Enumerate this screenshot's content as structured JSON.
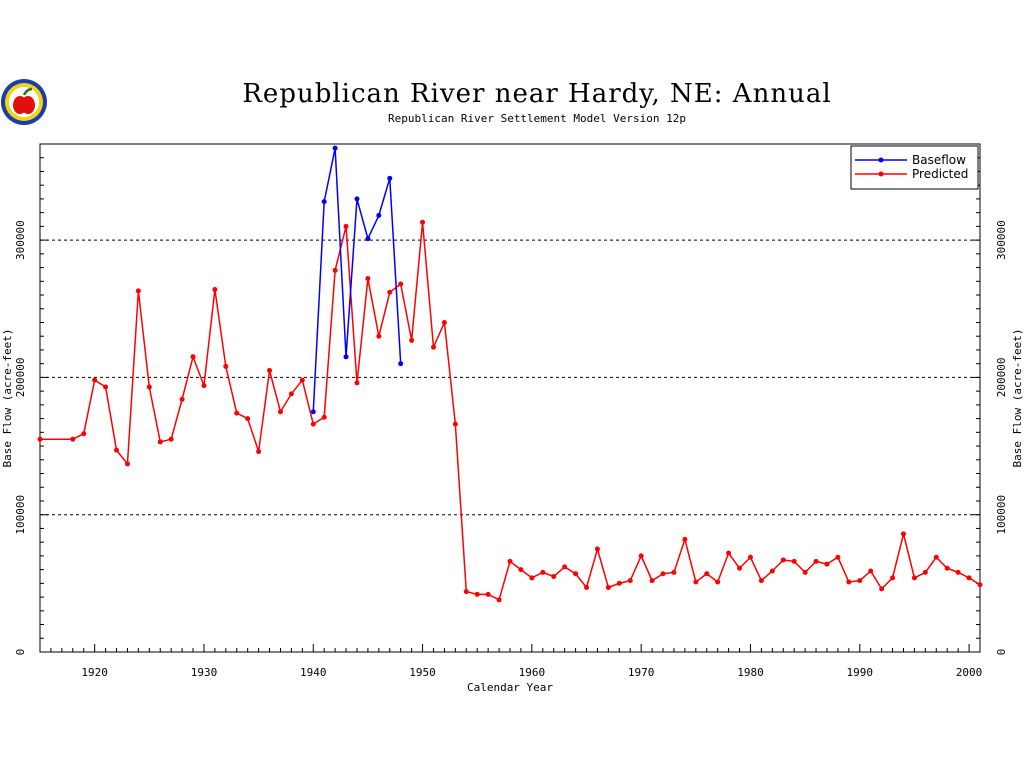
{
  "chart_data": {
    "type": "line",
    "title": "Republican River near Hardy, NE: Annual",
    "subtitle": "Republican River Settlement Model Version 12p",
    "xlabel": "Calendar Year",
    "ylabel": "Base Flow (acre-feet)",
    "xlim": [
      1915,
      2001
    ],
    "ylim": [
      0,
      370000
    ],
    "x_ticks": [
      1920,
      1930,
      1940,
      1950,
      1960,
      1970,
      1980,
      1990,
      2000
    ],
    "y_ticks": [
      0,
      100000,
      200000,
      300000
    ],
    "gridlines_y": [
      100000,
      200000,
      300000
    ],
    "legend_position": "top-right",
    "series": [
      {
        "name": "Baseflow",
        "color": "#0000ff",
        "x": [
          1940,
          1941,
          1942,
          1943,
          1944,
          1945,
          1946,
          1947,
          1948
        ],
        "values": [
          175000,
          328000,
          367000,
          215000,
          330000,
          301000,
          318000,
          345000,
          210000
        ]
      },
      {
        "name": "Predicted",
        "color": "#ff0000",
        "x": [
          1915,
          1918,
          1919,
          1920,
          1921,
          1922,
          1923,
          1924,
          1925,
          1926,
          1927,
          1928,
          1929,
          1930,
          1931,
          1932,
          1933,
          1934,
          1935,
          1936,
          1937,
          1938,
          1939,
          1940,
          1941,
          1942,
          1943,
          1944,
          1945,
          1946,
          1947,
          1948,
          1949,
          1950,
          1951,
          1952,
          1953,
          1954,
          1955,
          1956,
          1957,
          1958,
          1959,
          1960,
          1961,
          1962,
          1963,
          1964,
          1965,
          1966,
          1967,
          1968,
          1969,
          1970,
          1971,
          1972,
          1973,
          1974,
          1975,
          1976,
          1977,
          1978,
          1979,
          1980,
          1981,
          1982,
          1983,
          1984,
          1985,
          1986,
          1987,
          1988,
          1989,
          1990,
          1991,
          1992,
          1993,
          1994,
          1995,
          1996,
          1997,
          1998,
          1999,
          2000,
          2001
        ],
        "values": [
          155000,
          155000,
          159000,
          198000,
          193000,
          147000,
          137000,
          263000,
          193000,
          153000,
          155000,
          184000,
          215000,
          194000,
          264000,
          208000,
          174000,
          170000,
          146000,
          205000,
          175000,
          188000,
          198000,
          166000,
          171000,
          278000,
          310000,
          196000,
          272000,
          230000,
          262000,
          268000,
          227000,
          313000,
          222000,
          240000,
          166000,
          44000,
          42000,
          42000,
          38000,
          66000,
          60000,
          54000,
          58000,
          55000,
          62000,
          57000,
          47000,
          75000,
          47000,
          50000,
          52000,
          70000,
          52000,
          57000,
          58000,
          82000,
          51000,
          57000,
          51000,
          72000,
          61000,
          69000,
          52000,
          59000,
          67000,
          66000,
          58000,
          66000,
          64000,
          69000,
          51000,
          52000,
          59000,
          46000,
          54000,
          86000,
          54000,
          58000,
          69000,
          61000,
          58000,
          54000,
          49000
        ]
      }
    ]
  },
  "logo": {
    "icon": "apple-logo-icon"
  }
}
